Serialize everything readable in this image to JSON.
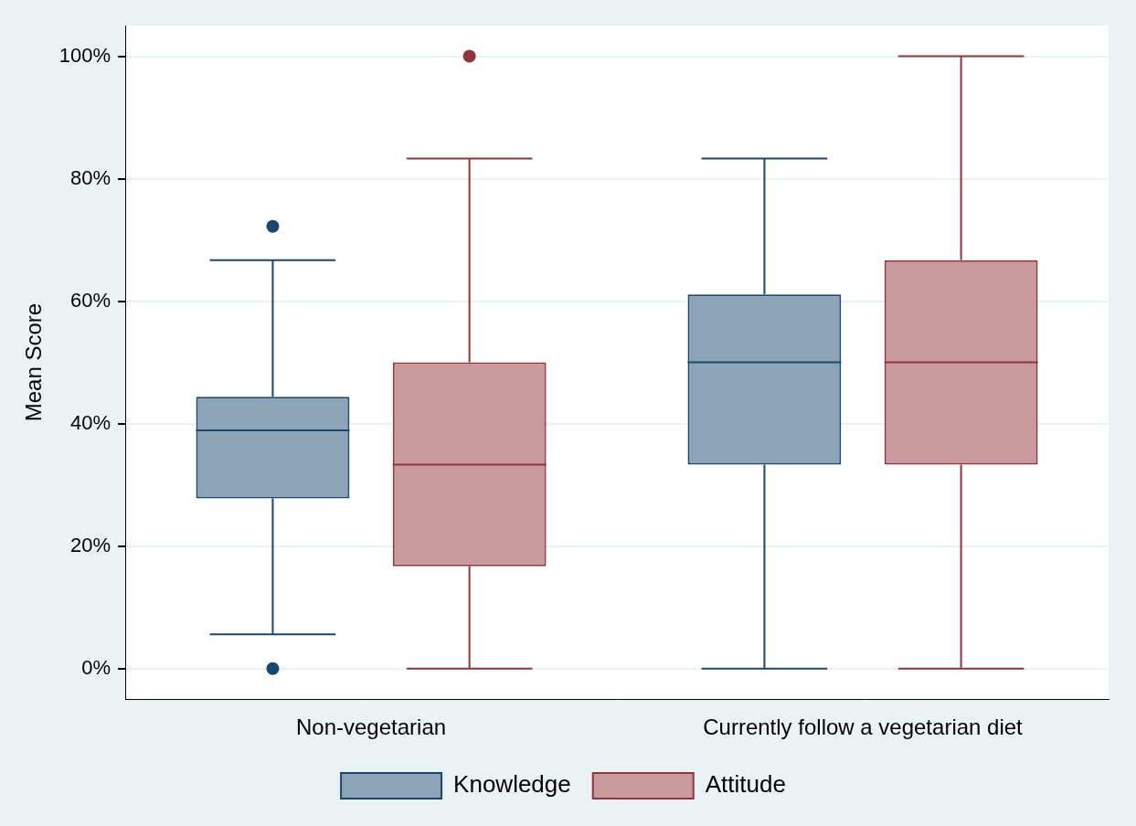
{
  "chart_data": {
    "type": "box",
    "categories": [
      "Non-vegetarian",
      "Currently follow a vegetarian diet"
    ],
    "ylabel": "Mean Score",
    "ylim": [
      -5,
      105
    ],
    "yticks": [
      {
        "value": 0,
        "label": "0%"
      },
      {
        "value": 20,
        "label": "20%"
      },
      {
        "value": 40,
        "label": "40%"
      },
      {
        "value": 60,
        "label": "60%"
      },
      {
        "value": 80,
        "label": "80%"
      },
      {
        "value": 100,
        "label": "100%"
      }
    ],
    "grid": true,
    "legend": "bottom",
    "series": [
      {
        "name": "Knowledge",
        "color": "#1a476f",
        "values": [
          {
            "min": 5.6,
            "q1": 27.8,
            "median": 38.9,
            "q3": 44.4,
            "max": 66.7,
            "outliers": [
              0,
              72.2
            ]
          },
          {
            "min": 0,
            "q1": 33.3,
            "median": 50,
            "q3": 61.1,
            "max": 83.3,
            "outliers": []
          }
        ]
      },
      {
        "name": "Attitude",
        "color": "#90353b",
        "values": [
          {
            "min": 0,
            "q1": 16.7,
            "median": 33.3,
            "q3": 50,
            "max": 83.3,
            "outliers": [
              100
            ]
          },
          {
            "min": 0,
            "q1": 33.3,
            "median": 50,
            "q3": 66.7,
            "max": 100,
            "outliers": []
          }
        ]
      }
    ]
  }
}
